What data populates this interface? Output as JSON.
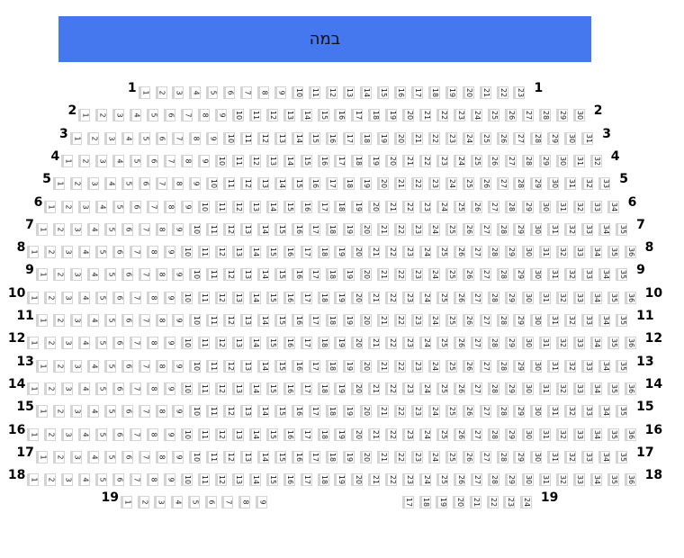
{
  "stage": {
    "label": "במה",
    "color": "#4577ee"
  },
  "rows": [
    {
      "label": "1",
      "seat_ranges": [
        [
          1,
          23
        ]
      ]
    },
    {
      "label": "2",
      "seat_ranges": [
        [
          1,
          30
        ]
      ]
    },
    {
      "label": "3",
      "seat_ranges": [
        [
          1,
          31
        ]
      ]
    },
    {
      "label": "4",
      "seat_ranges": [
        [
          1,
          32
        ]
      ]
    },
    {
      "label": "5",
      "seat_ranges": [
        [
          1,
          33
        ]
      ]
    },
    {
      "label": "6",
      "seat_ranges": [
        [
          1,
          34
        ]
      ]
    },
    {
      "label": "7",
      "seat_ranges": [
        [
          1,
          35
        ]
      ]
    },
    {
      "label": "8",
      "seat_ranges": [
        [
          1,
          36
        ]
      ]
    },
    {
      "label": "9",
      "seat_ranges": [
        [
          1,
          35
        ]
      ]
    },
    {
      "label": "10",
      "seat_ranges": [
        [
          1,
          36
        ]
      ]
    },
    {
      "label": "11",
      "seat_ranges": [
        [
          1,
          35
        ]
      ]
    },
    {
      "label": "12",
      "seat_ranges": [
        [
          1,
          36
        ]
      ]
    },
    {
      "label": "13",
      "seat_ranges": [
        [
          1,
          35
        ]
      ]
    },
    {
      "label": "14",
      "seat_ranges": [
        [
          1,
          36
        ]
      ]
    },
    {
      "label": "15",
      "seat_ranges": [
        [
          1,
          35
        ]
      ]
    },
    {
      "label": "16",
      "seat_ranges": [
        [
          1,
          36
        ]
      ]
    },
    {
      "label": "17",
      "seat_ranges": [
        [
          1,
          35
        ]
      ]
    },
    {
      "label": "18",
      "seat_ranges": [
        [
          1,
          36
        ]
      ]
    },
    {
      "label": "19",
      "seat_ranges": [
        [
          1,
          9
        ],
        [
          17,
          24
        ]
      ]
    }
  ]
}
